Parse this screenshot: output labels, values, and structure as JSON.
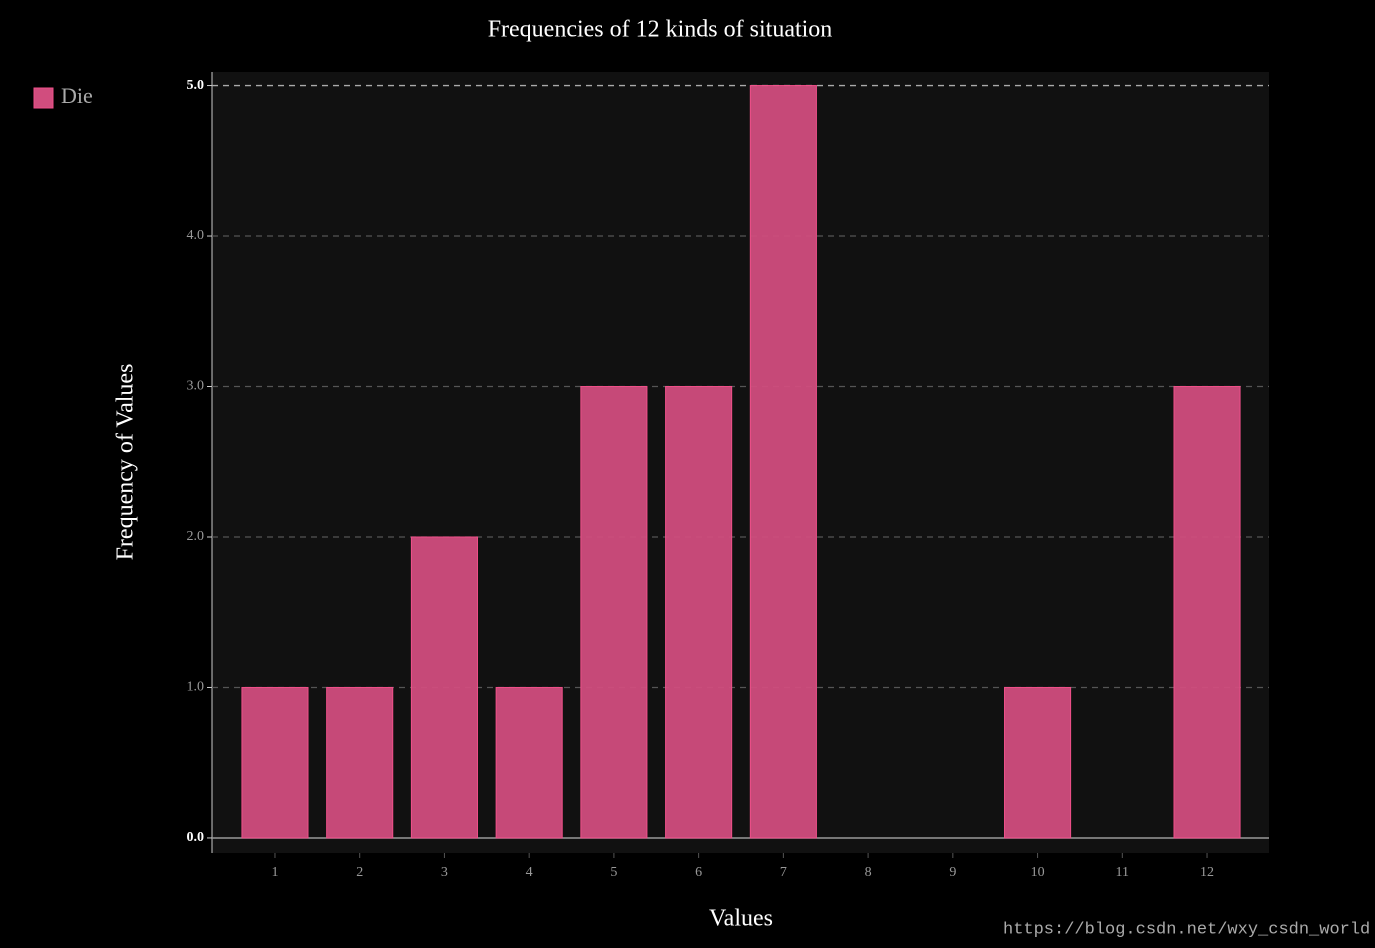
{
  "chart_data": {
    "type": "bar",
    "title": "Frequencies of 12 kinds of situation",
    "x_label": "Values",
    "y_label": "Frequency of Values",
    "categories": [
      "1",
      "2",
      "3",
      "4",
      "5",
      "6",
      "7",
      "8",
      "9",
      "10",
      "11",
      "12"
    ],
    "series": [
      {
        "name": "Die",
        "color": "#d14d7e",
        "values": [
          1,
          1,
          2,
          1,
          3,
          3,
          5,
          0,
          0,
          1,
          0,
          3
        ]
      }
    ],
    "ylim": [
      -0.1,
      5.09
    ],
    "yticks": [
      {
        "value": 0,
        "label": "0.0"
      },
      {
        "value": 1,
        "label": "1.0"
      },
      {
        "value": 2,
        "label": "2.0"
      },
      {
        "value": 3,
        "label": "3.0"
      },
      {
        "value": 4,
        "label": "4.0"
      },
      {
        "value": 5,
        "label": "5.0"
      }
    ],
    "grid": true,
    "legend": "top-left",
    "watermark": "https://blog.csdn.net/wxy_csdn_world"
  }
}
